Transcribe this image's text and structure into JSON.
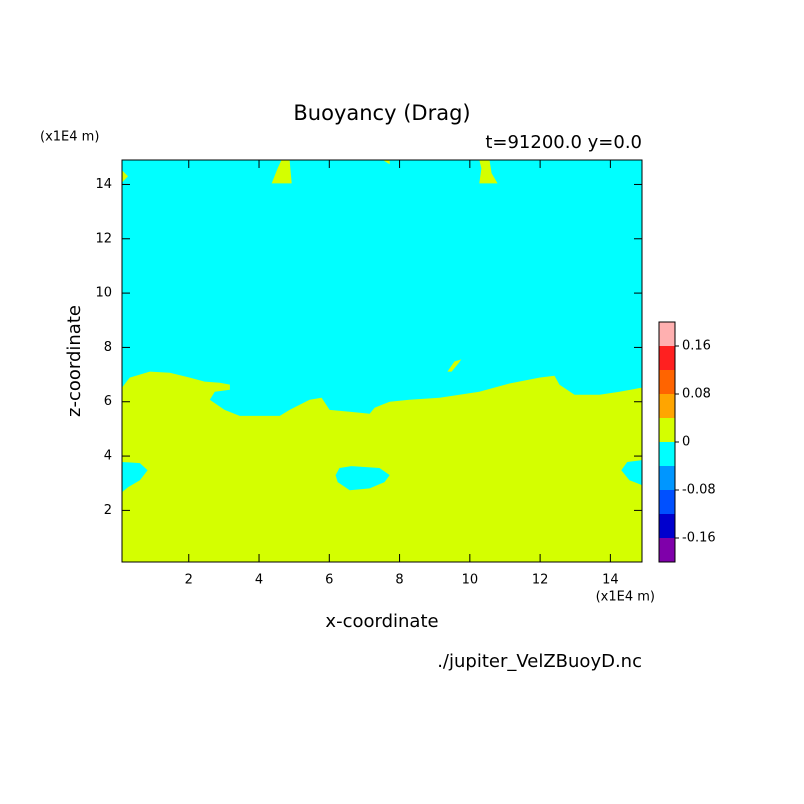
{
  "chart_data": {
    "type": "contour",
    "title": "Buoyancy (Drag)",
    "subtitle": "t=91200.0 y=0.0",
    "x_label": "x-coordinate",
    "y_label": "z-coordinate",
    "x_unit": "(x1E4 m)",
    "y_unit": "(x1E4 m)",
    "footer": "./jupiter_VelZBuoyD.nc",
    "xlim": [
      0.1,
      14.9
    ],
    "ylim": [
      0.1,
      14.9
    ],
    "xticks": [
      2,
      4,
      6,
      8,
      10,
      12,
      14
    ],
    "yticks": [
      2,
      4,
      6,
      8,
      10,
      12,
      14
    ],
    "background_color": "#00ffff",
    "regions": [
      {
        "color": "#d4ff00",
        "x": [
          0.1,
          0.32,
          0.89,
          1.46,
          2.03,
          2.45,
          2.88,
          3.17,
          3.17,
          2.74,
          2.6,
          3.02,
          3.45,
          4.59,
          4.87,
          5.44,
          5.78,
          6.01,
          6.58,
          7.15,
          7.29,
          7.72,
          8.28,
          9.14,
          10.27,
          11.13,
          11.98,
          12.41,
          12.55,
          12.98,
          13.69,
          14.26,
          14.9,
          14.9,
          0.1
        ],
        "y": [
          6.52,
          6.89,
          7.11,
          7.07,
          6.89,
          6.74,
          6.7,
          6.63,
          6.44,
          6.37,
          6.07,
          5.7,
          5.48,
          5.48,
          5.7,
          6.07,
          6.15,
          5.7,
          5.63,
          5.56,
          5.78,
          6.0,
          6.07,
          6.15,
          6.37,
          6.67,
          6.89,
          6.96,
          6.63,
          6.26,
          6.26,
          6.37,
          6.52,
          0.1,
          0.1
        ]
      },
      {
        "color": "#00ffff",
        "x": [
          0.1,
          0.61,
          0.83,
          0.61,
          0.27,
          0.1
        ],
        "y": [
          3.78,
          3.74,
          3.48,
          3.11,
          2.85,
          2.67
        ]
      },
      {
        "color": "#00ffff",
        "x": [
          14.9,
          14.48,
          14.31,
          14.54,
          14.9
        ],
        "y": [
          3.85,
          3.78,
          3.48,
          3.11,
          2.93
        ]
      },
      {
        "color": "#00ffff",
        "x": [
          6.29,
          6.63,
          7.43,
          7.72,
          7.57,
          7.15,
          6.58,
          6.24,
          6.18
        ],
        "y": [
          3.56,
          3.63,
          3.56,
          3.3,
          3.04,
          2.81,
          2.74,
          3.04,
          3.3
        ]
      },
      {
        "color": "#d4ff00",
        "x": [
          4.36,
          4.53,
          4.64,
          4.87,
          4.93
        ],
        "y": [
          14.04,
          14.59,
          14.9,
          14.9,
          14.04
        ]
      },
      {
        "color": "#d4ff00",
        "x": [
          10.27,
          10.33,
          10.27,
          10.56,
          10.62,
          10.79
        ],
        "y": [
          14.04,
          14.59,
          14.9,
          14.9,
          14.41,
          14.04
        ]
      },
      {
        "color": "#d4ff00",
        "x": [
          7.52,
          7.72,
          7.72
        ],
        "y": [
          14.9,
          14.9,
          14.74
        ]
      },
      {
        "color": "#d4ff00",
        "x": [
          0.1,
          0.27,
          0.1
        ],
        "y": [
          14.52,
          14.3,
          14.07
        ]
      },
      {
        "color": "#d4ff00",
        "x": [
          9.36,
          9.56,
          9.76,
          9.65,
          9.48
        ],
        "y": [
          7.11,
          7.48,
          7.56,
          7.37,
          7.11
        ]
      }
    ],
    "colorbar": {
      "levels": [
        -0.2,
        -0.16,
        -0.12,
        -0.08,
        -0.04,
        0,
        0.04,
        0.08,
        0.12,
        0.16,
        0.2
      ],
      "colors": [
        "#7f00aa",
        "#0000cd",
        "#0050ff",
        "#0096ff",
        "#00ffff",
        "#d4ff00",
        "#ffa500",
        "#ff6400",
        "#ff2020",
        "#ffb0b0"
      ],
      "ticks": [
        -0.16,
        -0.08,
        0,
        0.08,
        0.16
      ]
    }
  }
}
